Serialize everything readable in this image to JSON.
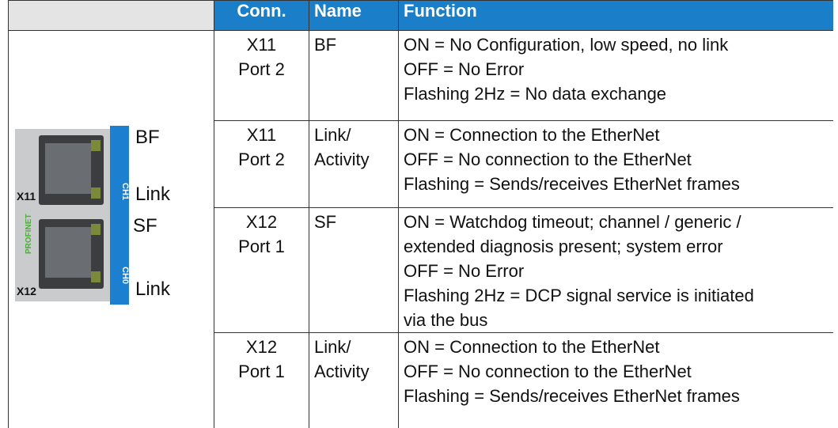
{
  "table": {
    "headers": [
      "Conn.",
      "Name",
      "Function"
    ],
    "image": {
      "labels": [
        "BF",
        "Link",
        "SF",
        "Link"
      ],
      "ports": [
        "X11",
        "X12"
      ],
      "channels": [
        "CH1",
        "CH0"
      ],
      "logo": "PROFINET"
    },
    "rows": [
      {
        "conn": [
          "X11",
          "Port 2"
        ],
        "name": [
          "BF"
        ],
        "function": [
          "ON = No Configuration, low speed, no link",
          "OFF = No Error",
          "Flashing 2Hz = No data exchange"
        ]
      },
      {
        "conn": [
          "X11",
          "Port 2"
        ],
        "name": [
          "Link/",
          "Activity"
        ],
        "function": [
          "ON = Connection to the EtherNet",
          "OFF = No connection to the EtherNet",
          "Flashing = Sends/receives EtherNet frames"
        ]
      },
      {
        "conn": [
          "X12",
          "Port 1"
        ],
        "name": [
          "SF"
        ],
        "function": [
          "ON = Watchdog timeout; channel / generic /",
          "extended diagnosis present; system error",
          "OFF = No Error",
          "Flashing 2Hz = DCP signal service is initiated",
          "via the bus"
        ]
      },
      {
        "conn": [
          "X12",
          "Port 1"
        ],
        "name": [
          "Link/",
          "Activity"
        ],
        "function": [
          "ON = Connection to the EtherNet",
          "OFF = No connection to the EtherNet",
          "Flashing = Sends/receives EtherNet frames"
        ]
      }
    ]
  }
}
